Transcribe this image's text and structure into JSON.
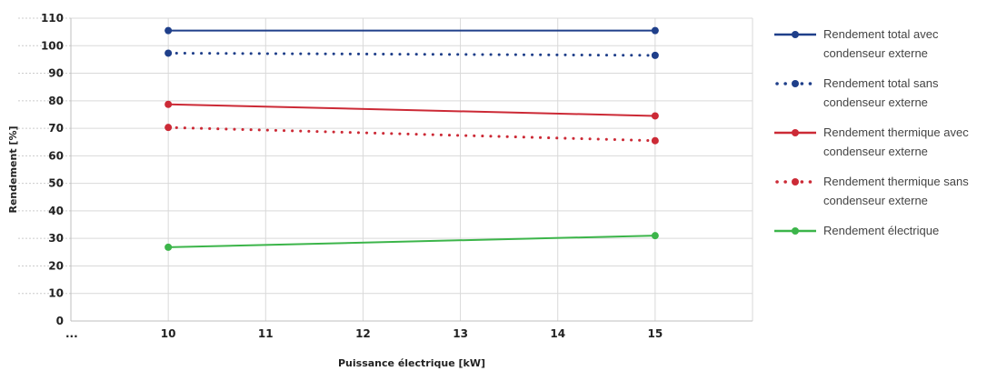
{
  "chart_data": {
    "type": "line",
    "title": "",
    "xlabel": "Puissance électrique [kW]",
    "ylabel": "Rendement [%]",
    "x_tick_labels": [
      "...",
      "10",
      "11",
      "12",
      "13",
      "14",
      "15"
    ],
    "y_tick_labels": [
      "0",
      "10",
      "20",
      "30",
      "40",
      "50",
      "60",
      "70",
      "80",
      "90",
      "100",
      "110"
    ],
    "xlim": [
      9,
      16
    ],
    "ylim": [
      0,
      110
    ],
    "grid": true,
    "legend_position": "right",
    "series": [
      {
        "name_lines": [
          "Rendement total avec",
          "condenseur externe"
        ],
        "color": "#1f3f8a",
        "dashed": false,
        "x": [
          10,
          15
        ],
        "values": [
          105.5,
          105.5
        ]
      },
      {
        "name_lines": [
          "Rendement total sans",
          "condenseur externe"
        ],
        "color": "#1f3f8a",
        "dashed": true,
        "x": [
          10,
          15
        ],
        "values": [
          97.3,
          96.5
        ]
      },
      {
        "name_lines": [
          "Rendement thermique avec",
          "condenseur externe"
        ],
        "color": "#cc2a36",
        "dashed": false,
        "x": [
          10,
          15
        ],
        "values": [
          78.7,
          74.5
        ]
      },
      {
        "name_lines": [
          "Rendement thermique sans",
          "condenseur externe"
        ],
        "color": "#cc2a36",
        "dashed": true,
        "x": [
          10,
          15
        ],
        "values": [
          70.3,
          65.5
        ]
      },
      {
        "name_lines": [
          "Rendement électrique"
        ],
        "color": "#3cb54a",
        "dashed": false,
        "x": [
          10,
          15
        ],
        "values": [
          26.8,
          31.0
        ]
      }
    ]
  }
}
